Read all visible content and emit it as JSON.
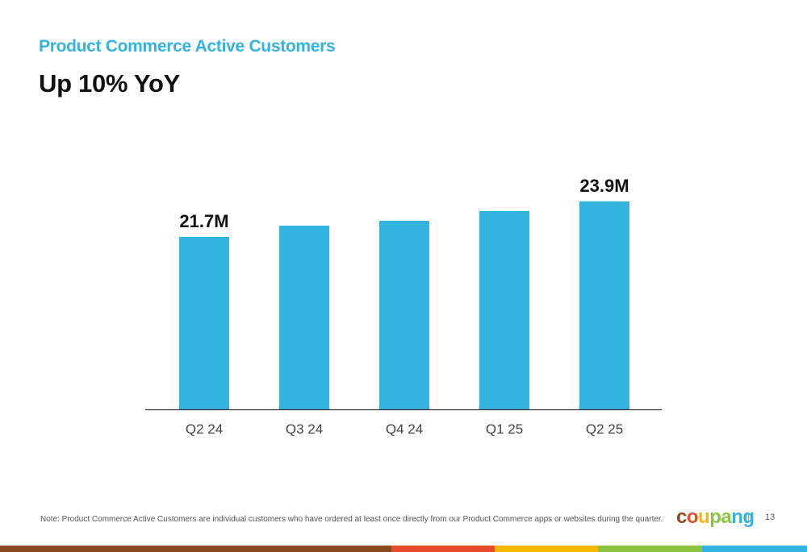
{
  "header": {
    "subtitle": "Product Commerce Active Customers",
    "title": "Up 10% YoY"
  },
  "chart_data": {
    "type": "bar",
    "categories": [
      "Q2 24",
      "Q3 24",
      "Q4 24",
      "Q1 25",
      "Q2 25"
    ],
    "values": [
      21.7,
      22.4,
      22.7,
      23.3,
      23.9
    ],
    "data_labels": [
      "21.7M",
      "",
      "",
      "",
      "23.9M"
    ],
    "unit": "M",
    "ylim": [
      11.0,
      25.0
    ],
    "grid": false,
    "bar_color": "#33b3df"
  },
  "footer": {
    "note": "Note: Product Commerce Active Customers are individual customers who have ordered at least once directly from our Product Commerce apps or websites during the quarter.",
    "logo_text": "coupang",
    "separator": "|",
    "page_number": "13"
  },
  "colors": {
    "accent": "#33b3df",
    "logo_letters": [
      "#8b4a1e",
      "#e74c2b",
      "#f5b800",
      "#8bc53f",
      "#8bc53f",
      "#33b3df",
      "#33b3df"
    ],
    "footer_bar": [
      "#8b4a1e",
      "#e74c2b",
      "#f5b800",
      "#8bc53f",
      "#33b3df"
    ]
  }
}
